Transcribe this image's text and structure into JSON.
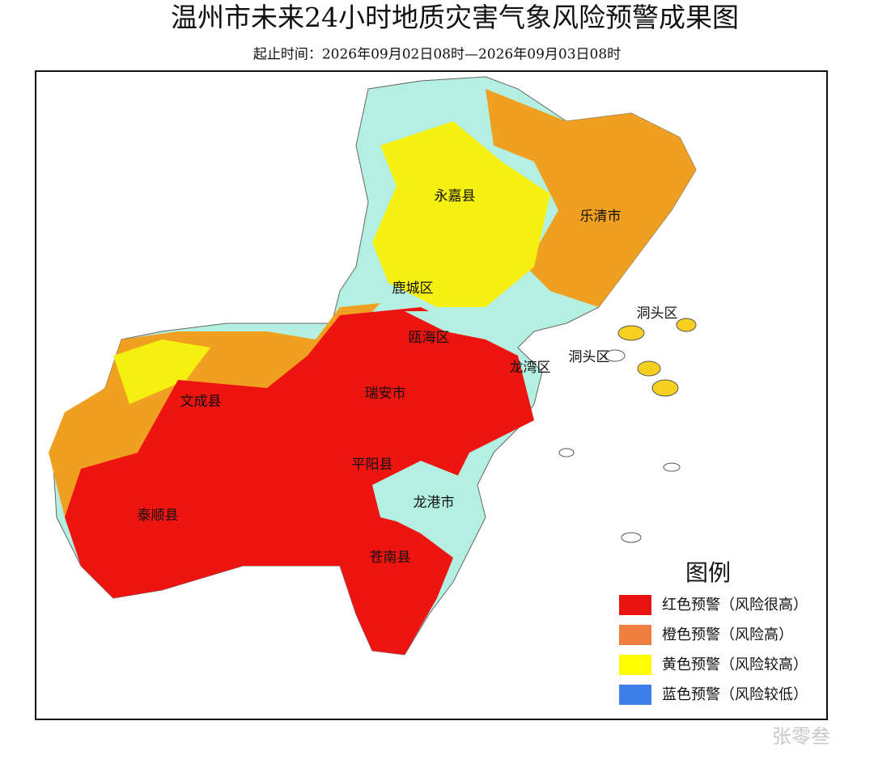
{
  "title": "温州市未来24小时地质灾害气象风险预警成果图",
  "subtitle": "起止时间：2026年09月02日08时—2026年09月03日08时",
  "map": {
    "districts": [
      "永嘉县",
      "乐清市",
      "鹿城区",
      "瓯海区",
      "洞头区",
      "洞头区",
      "龙湾区",
      "瑞安市",
      "文成县",
      "平阳县",
      "泰顺县",
      "龙港市",
      "苍南县"
    ]
  },
  "legend": {
    "title": "图例",
    "items": [
      {
        "label": "红色预警（风险很高）",
        "color": "#e8140f"
      },
      {
        "label": "橙色预警（风险高）",
        "color": "#ef7f3e"
      },
      {
        "label": "黄色预警（风险较高）",
        "color": "#ffff00"
      },
      {
        "label": "蓝色预警（风险较低）",
        "color": "#3d80ea"
      }
    ]
  },
  "watermark": "张零叁"
}
